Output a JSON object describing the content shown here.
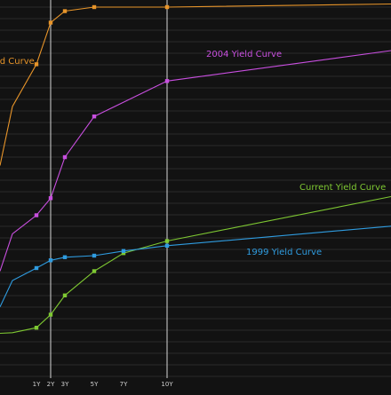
{
  "chart_data": {
    "type": "line",
    "xlabel": "",
    "ylabel": "",
    "grid": true,
    "x_ticks": [
      {
        "label": "1Y",
        "value": 1
      },
      {
        "label": "2Y",
        "value": 2
      },
      {
        "label": "3Y",
        "value": 3
      },
      {
        "label": "5Y",
        "value": 5
      },
      {
        "label": "7Y",
        "value": 7
      },
      {
        "label": "10Y",
        "value": 10
      }
    ],
    "highlight_x": [
      2,
      10
    ],
    "series": [
      {
        "name": "ld Curve",
        "color": "#e8952a",
        "points": [
          [
            -2.5,
            6.5
          ],
          [
            0,
            8.4
          ],
          [
            1,
            9.76
          ],
          [
            2,
            11.1
          ],
          [
            3,
            11.47
          ],
          [
            5,
            11.6
          ],
          [
            10,
            11.6
          ],
          [
            20,
            11.7
          ]
        ]
      },
      {
        "name": "2004 Yield Curve",
        "color": "#c94fe0",
        "points": [
          [
            -2.5,
            3.1
          ],
          [
            0,
            4.3
          ],
          [
            1,
            4.9
          ],
          [
            2,
            5.45
          ],
          [
            3,
            6.77
          ],
          [
            5,
            8.08
          ],
          [
            10,
            9.22
          ],
          [
            20,
            10.2
          ]
        ]
      },
      {
        "name": "Current Yield Curve",
        "color": "#7ec832",
        "points": [
          [
            -2.5,
            1.1
          ],
          [
            0,
            1.12
          ],
          [
            1,
            1.28
          ],
          [
            2,
            1.7
          ],
          [
            3,
            2.32
          ],
          [
            5,
            3.1
          ],
          [
            7,
            3.68
          ],
          [
            10,
            4.07
          ],
          [
            20,
            5.5
          ]
        ]
      },
      {
        "name": "1999 Yield Curve",
        "color": "#2f9ce0",
        "points": [
          [
            -2.5,
            1.95
          ],
          [
            0,
            2.8
          ],
          [
            1,
            3.2
          ],
          [
            2,
            3.45
          ],
          [
            3,
            3.55
          ],
          [
            5,
            3.6
          ],
          [
            7,
            3.75
          ],
          [
            10,
            3.92
          ],
          [
            20,
            4.55
          ]
        ]
      }
    ]
  }
}
